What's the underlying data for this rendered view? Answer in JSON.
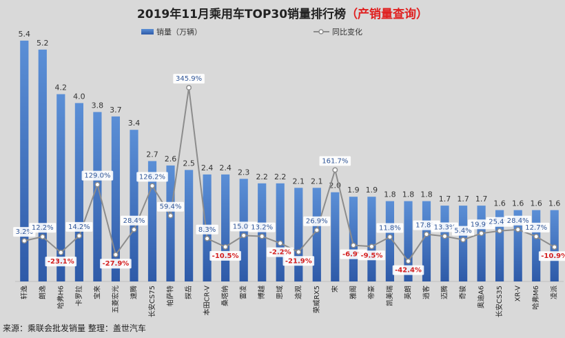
{
  "title": {
    "main": "2019年11月乘用车TOP30销量排行榜",
    "highlight": "（产销量查询）"
  },
  "legend": {
    "bar": "销量（万辆）",
    "line": "同比变化"
  },
  "source": "来源：乘联会批发销量  整理：盖世汽车",
  "colors": {
    "bar_top": "#5b8fd6",
    "bar_bottom": "#2e5aa8",
    "line": "#8c8c8c",
    "positive": "#2f5597",
    "negative": "#d42020",
    "title_highlight": "#e02020"
  },
  "chart_data": {
    "type": "bar+line",
    "categories": [
      "轩逸",
      "朗逸",
      "哈弗H6",
      "卡罗拉",
      "宝来",
      "五菱宏光",
      "速腾",
      "长安CS75",
      "帕萨特",
      "探岳",
      "本田CR-V",
      "桑塔纳",
      "雷凌",
      "博越",
      "思域",
      "途观",
      "荣威RX5",
      "宋",
      "雅阁",
      "帝豪",
      "凯美瑞",
      "英朗",
      "逍客",
      "迈腾",
      "奇骏",
      "奥迪A6",
      "长安CS35",
      "XR-V",
      "哈弗M6",
      "凌派"
    ],
    "series": [
      {
        "name": "销量（万辆）",
        "type": "bar",
        "values": [
          5.4,
          5.2,
          4.2,
          4.0,
          3.8,
          3.7,
          3.4,
          2.7,
          2.6,
          2.5,
          2.4,
          2.4,
          2.3,
          2.2,
          2.2,
          2.1,
          2.1,
          2.0,
          1.9,
          1.9,
          1.8,
          1.8,
          1.8,
          1.7,
          1.7,
          1.7,
          1.6,
          1.6,
          1.6,
          1.6
        ]
      },
      {
        "name": "同比变化",
        "type": "line",
        "values": [
          3.2,
          12.2,
          -23.1,
          14.2,
          129.0,
          -27.9,
          28.4,
          126.2,
          59.4,
          345.9,
          8.3,
          -10.5,
          15.0,
          13.2,
          -2.2,
          -21.9,
          26.9,
          161.7,
          -6.9,
          -9.5,
          11.8,
          -42.4,
          17.8,
          13.3,
          5.4,
          19.9,
          25.4,
          28.4,
          12.7,
          -10.9
        ],
        "labels": [
          "3.2%",
          "12.2%",
          "-23.1%",
          "14.2%",
          "129.0%",
          "-27.9%",
          "28.4%",
          "126.2%",
          "59.4%",
          "345.9%",
          "8.3%",
          "-10.5%",
          "15.0%",
          "13.2%",
          "-2.2%",
          "-21.9%",
          "26.9%",
          "161.7%",
          "-6.9%",
          "-9.5%",
          "11.8%",
          "-42.4%",
          "17.8%",
          "13.3%",
          "5.4%",
          "19.9%",
          "25.4%",
          "28.4%",
          "12.7%",
          "-10.9%"
        ]
      }
    ],
    "bar_labels": [
      "5.4",
      "5.2",
      "4.2",
      "4.0",
      "3.8",
      "3.7",
      "3.4",
      "2.7",
      "2.6",
      "2.5",
      "2.4",
      "2.4",
      "2.3",
      "2.2",
      "2.2",
      "2.1",
      "2.1",
      "2.0",
      "1.9",
      "1.9",
      "1.8",
      "1.8",
      "1.8",
      "1.7",
      "1.7",
      "1.7",
      "1.6",
      "1.6",
      "1.6",
      "1.6"
    ],
    "ylim_bar": [
      0,
      5.6
    ],
    "ylim_line": [
      -60,
      360
    ],
    "grid": false,
    "legend_position": "top"
  }
}
